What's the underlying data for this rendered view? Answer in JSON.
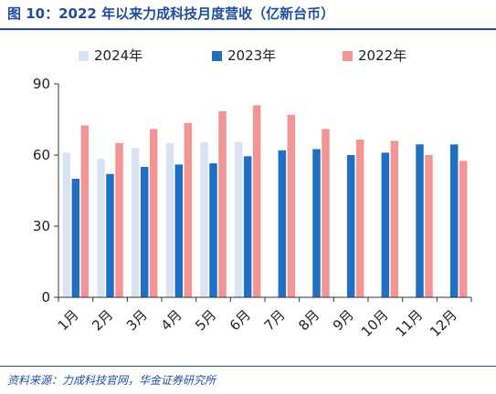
{
  "figure": {
    "title": "图 10：2022 年以来力成科技月度营收（亿新台币）",
    "source": "资料来源：力成科技官网，华金证券研究所"
  },
  "chart_data": {
    "type": "bar",
    "categories": [
      "1月",
      "2月",
      "3月",
      "4月",
      "5月",
      "6月",
      "7月",
      "8月",
      "9月",
      "10月",
      "11月",
      "12月"
    ],
    "series": [
      {
        "name": "2024年",
        "color": "#d9e3f3",
        "values": [
          61,
          58.5,
          63,
          65,
          65.5,
          65.5,
          null,
          null,
          null,
          null,
          null,
          null
        ]
      },
      {
        "name": "2023年",
        "color": "#1f6fc5",
        "values": [
          50,
          52,
          55,
          56,
          56.5,
          59.5,
          62,
          62.5,
          60,
          61,
          64.5,
          64.5
        ]
      },
      {
        "name": "2022年",
        "color": "#f49595",
        "values": [
          72.5,
          65,
          71,
          73.5,
          78.5,
          81,
          77,
          71,
          66.5,
          66,
          60,
          57.5
        ]
      }
    ],
    "ylim": [
      0,
      90
    ],
    "yticks": [
      "0",
      "30",
      "60",
      "90"
    ],
    "legend_position": "top"
  }
}
